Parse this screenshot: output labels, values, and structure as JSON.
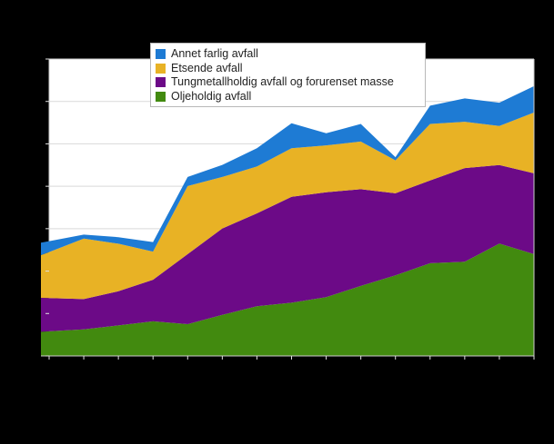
{
  "legend": {
    "items": [
      {
        "label": "Annet farlig avfall",
        "color": "#1e7bd4",
        "series_key": "annet"
      },
      {
        "label": "Etsende avfall",
        "color": "#e8b225",
        "series_key": "etsende"
      },
      {
        "label": "Tungmetallholdig avfall og forurenset masse",
        "color": "#6c0a87",
        "series_key": "tungmetall"
      },
      {
        "label": "Oljeholdig avfall",
        "color": "#428a0f",
        "series_key": "oljeholdig"
      }
    ]
  },
  "chart_data": {
    "type": "area",
    "stacked": true,
    "x_index": [
      1,
      2,
      3,
      4,
      5,
      6,
      7,
      8,
      9,
      10,
      11,
      12,
      13,
      14,
      15
    ],
    "series": [
      {
        "name": "Oljeholdig avfall",
        "color": "#428a0f",
        "values": [
          116,
          125,
          144,
          163,
          150,
          194,
          234,
          251,
          277,
          330,
          380,
          437,
          444,
          530,
          480
        ]
      },
      {
        "name": "Tungmetallholdig avfall og forurenset masse",
        "color": "#6c0a87",
        "values": [
          157,
          143,
          161,
          196,
          330,
          407,
          438,
          499,
          495,
          456,
          387,
          390,
          442,
          370,
          381
        ]
      },
      {
        "name": "Etsende avfall",
        "color": "#e8b225",
        "values": [
          217,
          285,
          224,
          133,
          321,
          243,
          221,
          229,
          221,
          225,
          155,
          267,
          218,
          184,
          287
        ]
      },
      {
        "name": "Annet farlig avfall",
        "color": "#1e7bd4",
        "values": [
          51,
          19,
          31,
          45,
          43,
          57,
          86,
          118,
          57,
          83,
          15,
          86,
          110,
          110,
          124
        ]
      }
    ],
    "title": "",
    "xlabel": "",
    "ylabel": "",
    "ylim": [
      0,
      1400
    ],
    "grid_step": 200,
    "grid": "horizontal-only",
    "legend_position": "top-left-inside",
    "x_tick_count": 15,
    "background": "#000000",
    "plot_background": "#ffffff",
    "grid_color": "#d9d9d9",
    "frame_color": "#cccccc",
    "tick_color": "#e0e0e0"
  }
}
